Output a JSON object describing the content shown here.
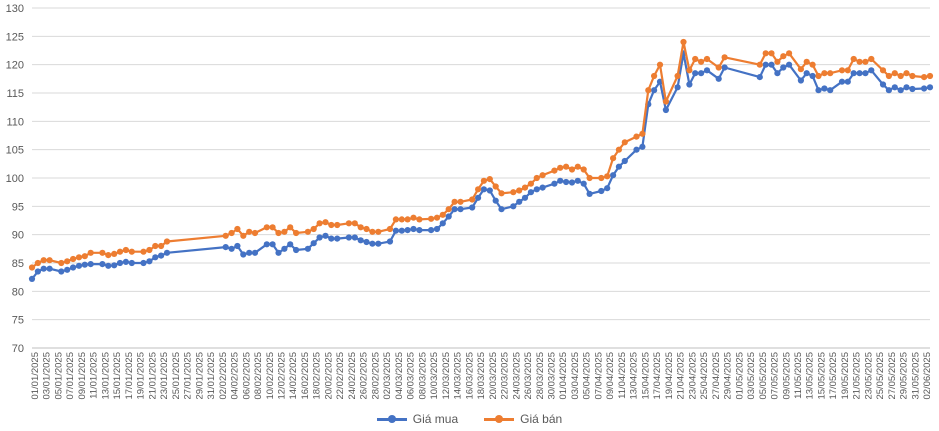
{
  "chart_data": {
    "type": "line",
    "title": "",
    "xlabel": "",
    "ylabel": "",
    "ylim": [
      70,
      130
    ],
    "yticks": [
      "70",
      "75",
      "80",
      "85",
      "90",
      "95",
      "100",
      "105",
      "110",
      "115",
      "120",
      "125",
      "130"
    ],
    "xticks": [
      "01/01/2025",
      "03/01/2025",
      "05/01/2025",
      "07/01/2025",
      "09/01/2025",
      "11/01/2025",
      "13/01/2025",
      "15/01/2025",
      "17/01/2025",
      "19/01/2025",
      "21/01/2025",
      "23/01/2025",
      "25/01/2025",
      "27/01/2025",
      "29/01/2025",
      "31/01/2025",
      "02/02/2025",
      "04/02/2025",
      "06/02/2025",
      "08/02/2025",
      "10/02/2025",
      "12/02/2025",
      "14/02/2025",
      "16/02/2025",
      "18/02/2025",
      "20/02/2025",
      "22/02/2025",
      "24/02/2025",
      "26/02/2025",
      "28/02/2025",
      "02/03/2025",
      "04/03/2025",
      "06/03/2025",
      "08/03/2025",
      "10/03/2025",
      "12/03/2025",
      "14/03/2025",
      "16/03/2025",
      "18/03/2025",
      "20/03/2025",
      "22/03/2025",
      "24/03/2025",
      "26/03/2025",
      "28/03/2025",
      "30/03/2025",
      "01/04/2025",
      "03/04/2025",
      "05/04/2025",
      "07/04/2025",
      "09/04/2025",
      "11/04/2025",
      "13/04/2025",
      "15/04/2025",
      "17/04/2025",
      "19/04/2025",
      "21/04/2025",
      "23/04/2025",
      "25/04/2025",
      "27/04/2025",
      "29/04/2025",
      "01/05/2025",
      "03/05/2025",
      "05/05/2025",
      "07/05/2025",
      "09/05/2025",
      "11/05/2025",
      "13/05/2025",
      "15/05/2025",
      "17/05/2025",
      "19/05/2025",
      "21/05/2025",
      "23/05/2025",
      "25/05/2025",
      "27/05/2025",
      "29/05/2025",
      "31/05/2025",
      "02/06/2025"
    ],
    "grid": true,
    "legend_position": "bottom",
    "series": [
      {
        "name": "Giá mua",
        "color": "#4472C4",
        "points": [
          [
            "01/01/2025",
            82.2
          ],
          [
            "02/01/2025",
            83.5
          ],
          [
            "03/01/2025",
            84.0
          ],
          [
            "04/01/2025",
            84.0
          ],
          [
            "06/01/2025",
            83.5
          ],
          [
            "07/01/2025",
            83.8
          ],
          [
            "08/01/2025",
            84.2
          ],
          [
            "09/01/2025",
            84.5
          ],
          [
            "10/01/2025",
            84.7
          ],
          [
            "11/01/2025",
            84.8
          ],
          [
            "13/01/2025",
            84.8
          ],
          [
            "14/01/2025",
            84.5
          ],
          [
            "15/01/2025",
            84.6
          ],
          [
            "16/01/2025",
            85.0
          ],
          [
            "17/01/2025",
            85.2
          ],
          [
            "18/01/2025",
            85.0
          ],
          [
            "20/01/2025",
            85.0
          ],
          [
            "21/01/2025",
            85.3
          ],
          [
            "22/01/2025",
            86.0
          ],
          [
            "23/01/2025",
            86.3
          ],
          [
            "24/01/2025",
            86.8
          ],
          [
            "03/02/2025",
            87.8
          ],
          [
            "04/02/2025",
            87.5
          ],
          [
            "05/02/2025",
            88.0
          ],
          [
            "06/02/2025",
            86.5
          ],
          [
            "07/02/2025",
            86.8
          ],
          [
            "08/02/2025",
            86.8
          ],
          [
            "10/02/2025",
            88.3
          ],
          [
            "11/02/2025",
            88.3
          ],
          [
            "12/02/2025",
            86.8
          ],
          [
            "13/02/2025",
            87.5
          ],
          [
            "14/02/2025",
            88.3
          ],
          [
            "15/02/2025",
            87.3
          ],
          [
            "17/02/2025",
            87.5
          ],
          [
            "18/02/2025",
            88.5
          ],
          [
            "19/02/2025",
            89.5
          ],
          [
            "20/02/2025",
            89.8
          ],
          [
            "21/02/2025",
            89.3
          ],
          [
            "22/02/2025",
            89.3
          ],
          [
            "24/02/2025",
            89.5
          ],
          [
            "25/02/2025",
            89.5
          ],
          [
            "26/02/2025",
            89.0
          ],
          [
            "27/02/2025",
            88.7
          ],
          [
            "28/02/2025",
            88.4
          ],
          [
            "01/03/2025",
            88.4
          ],
          [
            "03/03/2025",
            88.8
          ],
          [
            "04/03/2025",
            90.7
          ],
          [
            "05/03/2025",
            90.7
          ],
          [
            "06/03/2025",
            90.8
          ],
          [
            "07/03/2025",
            91.0
          ],
          [
            "08/03/2025",
            90.8
          ],
          [
            "10/03/2025",
            90.8
          ],
          [
            "11/03/2025",
            91.0
          ],
          [
            "12/03/2025",
            92.0
          ],
          [
            "13/03/2025",
            93.2
          ],
          [
            "14/03/2025",
            94.5
          ],
          [
            "15/03/2025",
            94.5
          ],
          [
            "17/03/2025",
            94.8
          ],
          [
            "18/03/2025",
            96.5
          ],
          [
            "19/03/2025",
            98.0
          ],
          [
            "20/03/2025",
            97.8
          ],
          [
            "21/03/2025",
            96.0
          ],
          [
            "22/03/2025",
            94.5
          ],
          [
            "24/03/2025",
            95.0
          ],
          [
            "25/03/2025",
            95.8
          ],
          [
            "26/03/2025",
            96.5
          ],
          [
            "27/03/2025",
            97.5
          ],
          [
            "28/03/2025",
            98.0
          ],
          [
            "29/03/2025",
            98.3
          ],
          [
            "31/03/2025",
            99.0
          ],
          [
            "01/04/2025",
            99.5
          ],
          [
            "02/04/2025",
            99.3
          ],
          [
            "03/04/2025",
            99.2
          ],
          [
            "04/04/2025",
            99.5
          ],
          [
            "05/04/2025",
            99.0
          ],
          [
            "06/04/2025",
            97.2
          ],
          [
            "08/04/2025",
            97.7
          ],
          [
            "09/04/2025",
            98.2
          ],
          [
            "10/04/2025",
            100.5
          ],
          [
            "11/04/2025",
            102.0
          ],
          [
            "12/04/2025",
            103.0
          ],
          [
            "14/04/2025",
            105.0
          ],
          [
            "15/04/2025",
            105.5
          ],
          [
            "16/04/2025",
            113.0
          ],
          [
            "17/04/2025",
            115.5
          ],
          [
            "18/04/2025",
            117.0
          ],
          [
            "19/04/2025",
            112.0
          ],
          [
            "21/04/2025",
            116.0
          ],
          [
            "22/04/2025",
            122.0
          ],
          [
            "23/04/2025",
            116.5
          ],
          [
            "24/04/2025",
            118.5
          ],
          [
            "25/04/2025",
            118.5
          ],
          [
            "26/04/2025",
            119.0
          ],
          [
            "28/04/2025",
            117.5
          ],
          [
            "29/04/2025",
            119.5
          ],
          [
            "05/05/2025",
            117.8
          ],
          [
            "06/05/2025",
            120.0
          ],
          [
            "07/05/2025",
            120.0
          ],
          [
            "08/05/2025",
            118.5
          ],
          [
            "09/05/2025",
            119.5
          ],
          [
            "10/05/2025",
            120.0
          ],
          [
            "12/05/2025",
            117.2
          ],
          [
            "13/05/2025",
            118.5
          ],
          [
            "14/05/2025",
            118.0
          ],
          [
            "15/05/2025",
            115.5
          ],
          [
            "16/05/2025",
            115.8
          ],
          [
            "17/05/2025",
            115.5
          ],
          [
            "19/05/2025",
            117.0
          ],
          [
            "20/05/2025",
            117.0
          ],
          [
            "21/05/2025",
            118.5
          ],
          [
            "22/05/2025",
            118.5
          ],
          [
            "23/05/2025",
            118.5
          ],
          [
            "24/05/2025",
            119.0
          ],
          [
            "26/05/2025",
            116.5
          ],
          [
            "27/05/2025",
            115.5
          ],
          [
            "28/05/2025",
            116.0
          ],
          [
            "29/05/2025",
            115.5
          ],
          [
            "30/05/2025",
            116.0
          ],
          [
            "31/05/2025",
            115.7
          ],
          [
            "02/06/2025",
            115.8
          ],
          [
            "03/06/2025",
            116.0
          ]
        ]
      },
      {
        "name": "Giá bán",
        "color": "#ED7D31",
        "points": [
          [
            "01/01/2025",
            84.2
          ],
          [
            "02/01/2025",
            85.0
          ],
          [
            "03/01/2025",
            85.5
          ],
          [
            "04/01/2025",
            85.5
          ],
          [
            "06/01/2025",
            85.0
          ],
          [
            "07/01/2025",
            85.3
          ],
          [
            "08/01/2025",
            85.7
          ],
          [
            "09/01/2025",
            86.0
          ],
          [
            "10/01/2025",
            86.2
          ],
          [
            "11/01/2025",
            86.8
          ],
          [
            "13/01/2025",
            86.8
          ],
          [
            "14/01/2025",
            86.4
          ],
          [
            "15/01/2025",
            86.6
          ],
          [
            "16/01/2025",
            87.0
          ],
          [
            "17/01/2025",
            87.3
          ],
          [
            "18/01/2025",
            87.0
          ],
          [
            "20/01/2025",
            87.0
          ],
          [
            "21/01/2025",
            87.3
          ],
          [
            "22/01/2025",
            88.0
          ],
          [
            "23/01/2025",
            88.0
          ],
          [
            "24/01/2025",
            88.8
          ],
          [
            "03/02/2025",
            89.8
          ],
          [
            "04/02/2025",
            90.3
          ],
          [
            "05/02/2025",
            91.0
          ],
          [
            "06/02/2025",
            89.8
          ],
          [
            "07/02/2025",
            90.5
          ],
          [
            "08/02/2025",
            90.3
          ],
          [
            "10/02/2025",
            91.3
          ],
          [
            "11/02/2025",
            91.3
          ],
          [
            "12/02/2025",
            90.3
          ],
          [
            "13/02/2025",
            90.5
          ],
          [
            "14/02/2025",
            91.3
          ],
          [
            "15/02/2025",
            90.3
          ],
          [
            "17/02/2025",
            90.5
          ],
          [
            "18/02/2025",
            91.0
          ],
          [
            "19/02/2025",
            92.0
          ],
          [
            "20/02/2025",
            92.2
          ],
          [
            "21/02/2025",
            91.7
          ],
          [
            "22/02/2025",
            91.7
          ],
          [
            "24/02/2025",
            92.0
          ],
          [
            "25/02/2025",
            92.0
          ],
          [
            "26/02/2025",
            91.3
          ],
          [
            "27/02/2025",
            91.0
          ],
          [
            "28/02/2025",
            90.5
          ],
          [
            "01/03/2025",
            90.5
          ],
          [
            "03/03/2025",
            91.0
          ],
          [
            "04/03/2025",
            92.7
          ],
          [
            "05/03/2025",
            92.7
          ],
          [
            "06/03/2025",
            92.7
          ],
          [
            "07/03/2025",
            93.0
          ],
          [
            "08/03/2025",
            92.7
          ],
          [
            "10/03/2025",
            92.8
          ],
          [
            "11/03/2025",
            93.0
          ],
          [
            "12/03/2025",
            93.5
          ],
          [
            "13/03/2025",
            94.5
          ],
          [
            "14/03/2025",
            95.8
          ],
          [
            "15/03/2025",
            95.8
          ],
          [
            "17/03/2025",
            96.2
          ],
          [
            "18/03/2025",
            98.0
          ],
          [
            "19/03/2025",
            99.5
          ],
          [
            "20/03/2025",
            99.8
          ],
          [
            "21/03/2025",
            98.5
          ],
          [
            "22/03/2025",
            97.3
          ],
          [
            "24/03/2025",
            97.5
          ],
          [
            "25/03/2025",
            97.8
          ],
          [
            "26/03/2025",
            98.3
          ],
          [
            "27/03/2025",
            99.0
          ],
          [
            "28/03/2025",
            100.0
          ],
          [
            "29/03/2025",
            100.5
          ],
          [
            "31/03/2025",
            101.3
          ],
          [
            "01/04/2025",
            101.8
          ],
          [
            "02/04/2025",
            102.0
          ],
          [
            "03/04/2025",
            101.5
          ],
          [
            "04/04/2025",
            102.0
          ],
          [
            "05/04/2025",
            101.5
          ],
          [
            "06/04/2025",
            100.0
          ],
          [
            "08/04/2025",
            100.0
          ],
          [
            "09/04/2025",
            100.3
          ],
          [
            "10/04/2025",
            103.5
          ],
          [
            "11/04/2025",
            105.0
          ],
          [
            "12/04/2025",
            106.3
          ],
          [
            "14/04/2025",
            107.3
          ],
          [
            "15/04/2025",
            107.8
          ],
          [
            "16/04/2025",
            115.5
          ],
          [
            "17/04/2025",
            118.0
          ],
          [
            "18/04/2025",
            120.0
          ],
          [
            "19/04/2025",
            113.5
          ],
          [
            "21/04/2025",
            118.0
          ],
          [
            "22/04/2025",
            124.0
          ],
          [
            "23/04/2025",
            119.0
          ],
          [
            "24/04/2025",
            121.0
          ],
          [
            "25/04/2025",
            120.5
          ],
          [
            "26/04/2025",
            121.0
          ],
          [
            "28/04/2025",
            119.5
          ],
          [
            "29/04/2025",
            121.3
          ],
          [
            "05/05/2025",
            120.0
          ],
          [
            "06/05/2025",
            122.0
          ],
          [
            "07/05/2025",
            122.0
          ],
          [
            "08/05/2025",
            120.5
          ],
          [
            "09/05/2025",
            121.5
          ],
          [
            "10/05/2025",
            122.0
          ],
          [
            "12/05/2025",
            119.2
          ],
          [
            "13/05/2025",
            120.5
          ],
          [
            "14/05/2025",
            120.0
          ],
          [
            "15/05/2025",
            118.0
          ],
          [
            "16/05/2025",
            118.5
          ],
          [
            "17/05/2025",
            118.5
          ],
          [
            "19/05/2025",
            119.0
          ],
          [
            "20/05/2025",
            119.0
          ],
          [
            "21/05/2025",
            121.0
          ],
          [
            "22/05/2025",
            120.5
          ],
          [
            "23/05/2025",
            120.5
          ],
          [
            "24/05/2025",
            121.0
          ],
          [
            "26/05/2025",
            119.0
          ],
          [
            "27/05/2025",
            118.0
          ],
          [
            "28/05/2025",
            118.5
          ],
          [
            "29/05/2025",
            118.0
          ],
          [
            "30/05/2025",
            118.5
          ],
          [
            "31/05/2025",
            118.0
          ],
          [
            "02/06/2025",
            117.8
          ],
          [
            "03/06/2025",
            118.0
          ]
        ]
      }
    ]
  }
}
